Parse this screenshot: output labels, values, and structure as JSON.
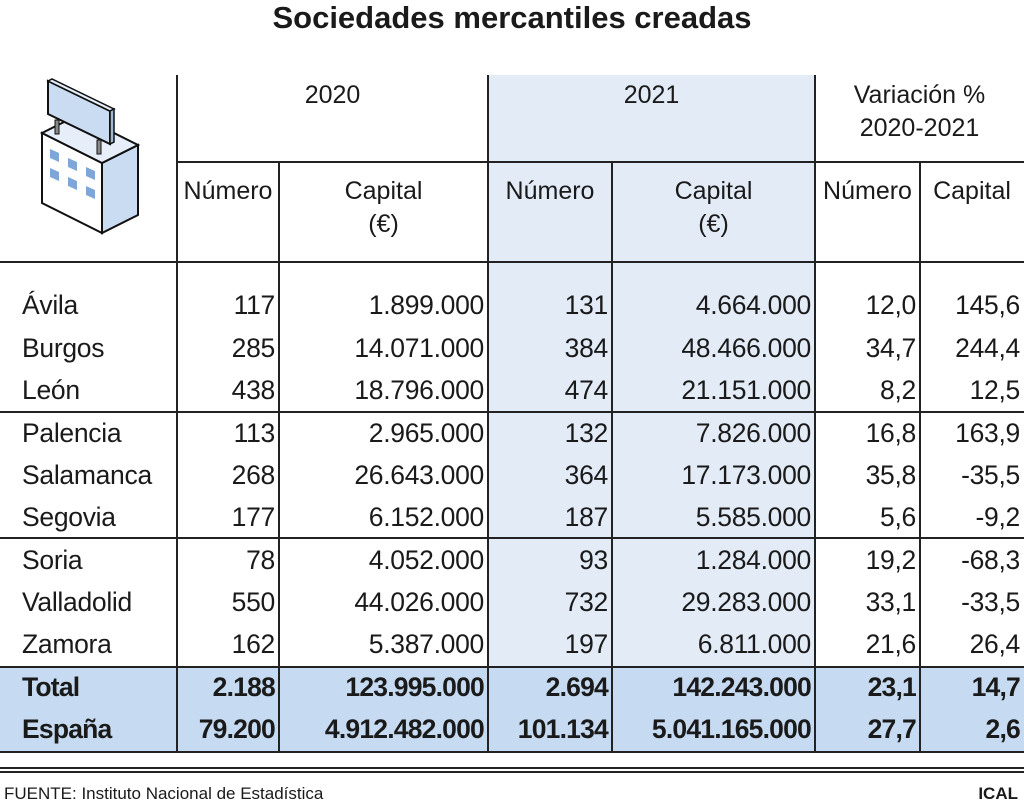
{
  "title": "Sociedades mercantiles creadas",
  "icon": "office-building-with-sign-icon",
  "colors": {
    "year_2021_shade": "#e3ebf7",
    "total_band": "#c6dbf1",
    "icon_blue": "#c9dcf2"
  },
  "headers": {
    "year_2020": "2020",
    "year_2021": "2021",
    "variation_line1": "Variación %",
    "variation_line2": "2020-2021",
    "numero": "Número",
    "capital_line1": "Capital",
    "capital_line2": "(€)",
    "capital": "Capital"
  },
  "chart_data": {
    "type": "table",
    "title": "Sociedades mercantiles creadas",
    "columns": [
      "2020 Número",
      "2020 Capital (€)",
      "2021 Número",
      "2021 Capital (€)",
      "Variación % 2020-2021 Número",
      "Variación % 2020-2021 Capital"
    ],
    "rows": [
      {
        "label": "Ávila",
        "values": [
          "117",
          "1.899.000",
          "131",
          "4.664.000",
          "12,0",
          "145,6"
        ]
      },
      {
        "label": "Burgos",
        "values": [
          "285",
          "14.071.000",
          "384",
          "48.466.000",
          "34,7",
          "244,4"
        ]
      },
      {
        "label": "León",
        "values": [
          "438",
          "18.796.000",
          "474",
          "21.151.000",
          "8,2",
          "12,5"
        ]
      },
      {
        "label": "Palencia",
        "values": [
          "113",
          "2.965.000",
          "132",
          "7.826.000",
          "16,8",
          "163,9"
        ]
      },
      {
        "label": "Salamanca",
        "values": [
          "268",
          "26.643.000",
          "364",
          "17.173.000",
          "35,8",
          "-35,5"
        ]
      },
      {
        "label": "Segovia",
        "values": [
          "177",
          "6.152.000",
          "187",
          "5.585.000",
          "5,6",
          "-9,2"
        ]
      },
      {
        "label": "Soria",
        "values": [
          "78",
          "4.052.000",
          "93",
          "1.284.000",
          "19,2",
          "-68,3"
        ]
      },
      {
        "label": "Valladolid",
        "values": [
          "550",
          "44.026.000",
          "732",
          "29.283.000",
          "33,1",
          "-33,5"
        ]
      },
      {
        "label": "Zamora",
        "values": [
          "162",
          "5.387.000",
          "197",
          "6.811.000",
          "21,6",
          "26,4"
        ]
      }
    ],
    "totals": [
      {
        "label": "Total",
        "values": [
          "2.188",
          "123.995.000",
          "2.694",
          "142.243.000",
          "23,1",
          "14,7"
        ]
      },
      {
        "label": "España",
        "values": [
          "79.200",
          "4.912.482.000",
          "101.134",
          "5.041.165.000",
          "27,7",
          "2,6"
        ]
      }
    ]
  },
  "footer": {
    "source": "FUENTE: Instituto Nacional de Estadística",
    "brand": "ICAL"
  }
}
